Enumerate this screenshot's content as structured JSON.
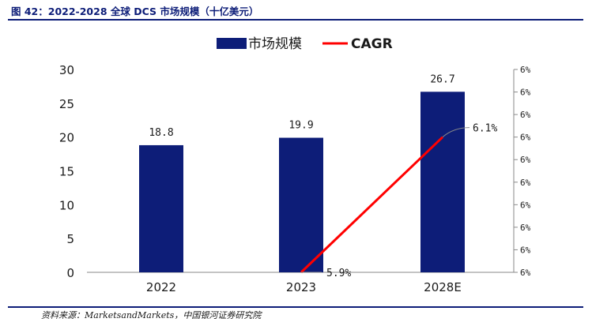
{
  "figure": {
    "title": "图 42：2022-2028 全球 DCS 市场规模（十亿美元）",
    "source": "资料来源：MarketsandMarkets，中国银河证券研究院"
  },
  "chart_data": {
    "type": "bar",
    "categories": [
      "2022",
      "2023",
      "2028E"
    ],
    "series": [
      {
        "name": "市场规模",
        "kind": "bar",
        "axis": "left",
        "color": "#0d1d78",
        "values": [
          18.8,
          19.9,
          26.7
        ],
        "labels": [
          "18.8",
          "19.9",
          "26.7"
        ]
      },
      {
        "name": "CAGR",
        "kind": "line",
        "axis": "right",
        "color": "#ff0000",
        "points": [
          {
            "x": "2023",
            "y": 5.9,
            "label": "5.9%"
          },
          {
            "x": "2028E",
            "y": 6.1,
            "label": "6.1%"
          }
        ]
      }
    ],
    "y_left": {
      "min": 0,
      "max": 30,
      "ticks": [
        "0",
        "5",
        "10",
        "15",
        "20",
        "25",
        "30"
      ]
    },
    "y_right": {
      "min": 5.9,
      "max": 6.2,
      "ticks": [
        "6%",
        "6%",
        "6%",
        "6%",
        "6%",
        "6%",
        "6%",
        "6%",
        "6%",
        "6%"
      ]
    },
    "legend": {
      "position": "top-center",
      "entries": [
        "市场规模",
        "CAGR"
      ]
    },
    "grid": false
  }
}
